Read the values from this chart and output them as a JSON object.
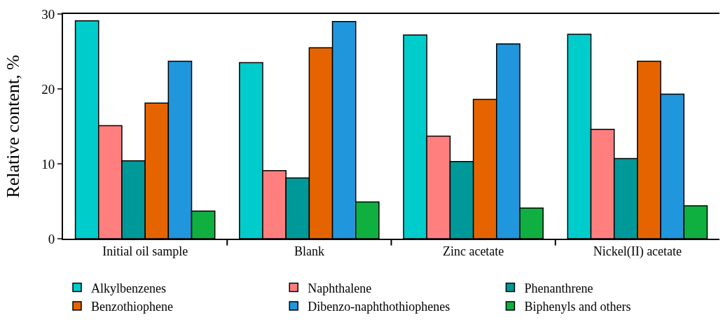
{
  "chart_data": {
    "type": "bar",
    "ylabel": "Relative content, %",
    "categories": [
      "Initial oil sample",
      "Blank",
      "Zinc acetate",
      "Nickel(II) acetate"
    ],
    "series": [
      {
        "name": "Alkylbenzenes",
        "color": "#00cccc",
        "values": [
          29.1,
          23.5,
          27.2,
          27.3
        ]
      },
      {
        "name": "Naphthalene",
        "color": "#ff7f7f",
        "values": [
          15.1,
          9.1,
          13.7,
          14.6
        ]
      },
      {
        "name": "Phenanthrene",
        "color": "#009999",
        "values": [
          10.4,
          8.1,
          10.3,
          10.7
        ]
      },
      {
        "name": "Benzothiophene",
        "color": "#e66400",
        "values": [
          18.1,
          25.5,
          18.6,
          23.7
        ]
      },
      {
        "name": "Dibenzo-naphthothiophenes",
        "color": "#2096dc",
        "values": [
          23.7,
          29.0,
          26.0,
          19.3
        ]
      },
      {
        "name": "Biphenyls and others",
        "color": "#10b040",
        "values": [
          3.7,
          4.9,
          4.1,
          4.4
        ]
      }
    ],
    "ylim": [
      0,
      30
    ],
    "yticks": [
      0,
      10,
      20,
      30
    ],
    "grid": false,
    "legend": "bottom"
  }
}
